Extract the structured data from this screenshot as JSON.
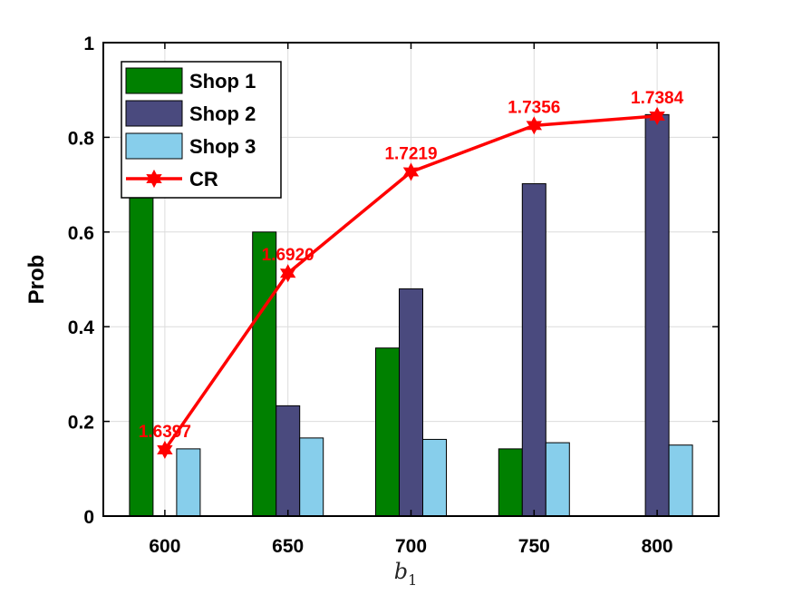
{
  "chart_data": {
    "type": "bar",
    "categories": [
      "600",
      "650",
      "700",
      "750",
      "800"
    ],
    "series": [
      {
        "name": "Shop 1",
        "kind": "bar",
        "color": "#008000",
        "values": [
          0.72,
          0.6,
          0.355,
          0.142,
          0.0
        ]
      },
      {
        "name": "Shop 2",
        "kind": "bar",
        "color": "#4a4a7e",
        "values": [
          0.0,
          0.233,
          0.48,
          0.702,
          0.848
        ]
      },
      {
        "name": "Shop 3",
        "kind": "bar",
        "color": "#87ceeb",
        "values": [
          0.142,
          0.165,
          0.162,
          0.155,
          0.15
        ]
      },
      {
        "name": "CR",
        "kind": "line",
        "color": "#ff0000",
        "marker": "hexagram",
        "values": [
          0.14,
          0.513,
          0.727,
          0.825,
          0.845
        ],
        "labels": [
          "1.6397",
          "1.6920",
          "1.7219",
          "1.7356",
          "1.7384"
        ]
      }
    ],
    "ylabel": "Prob",
    "xlabel": {
      "main": "b",
      "sub": "1"
    },
    "ylim": [
      0,
      1
    ],
    "yticks": [
      0,
      0.2,
      0.4,
      0.6,
      0.8,
      1
    ],
    "ytick_labels": [
      "0",
      "0.2",
      "0.4",
      "0.6",
      "0.8",
      "1"
    ],
    "grid": true,
    "legend_position": "top-left"
  }
}
